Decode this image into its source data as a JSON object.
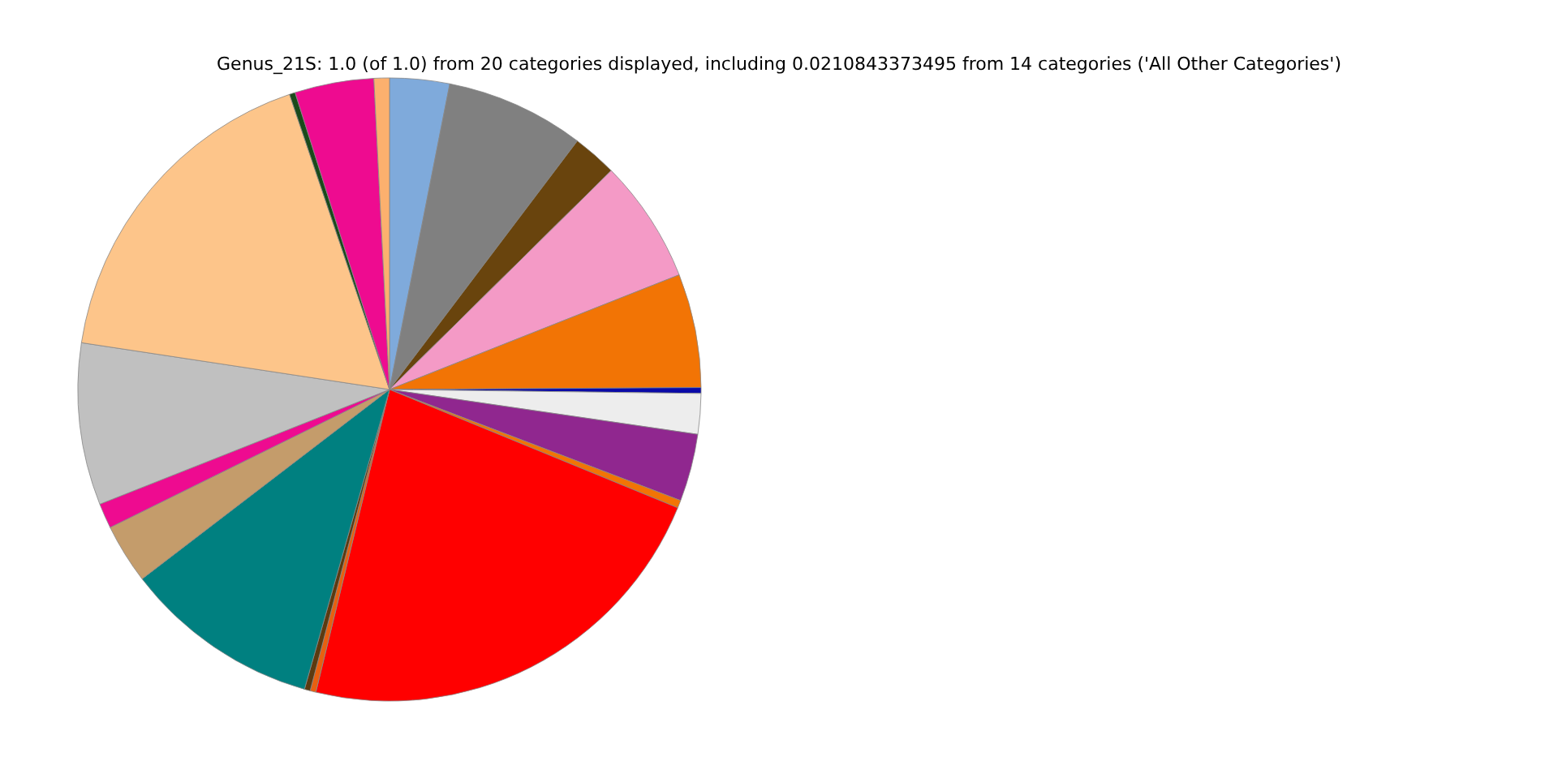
{
  "chart_data": {
    "type": "pie",
    "title": "Genus_21S: 1.0 (of 1.0) from 20 categories displayed, including 0.0210843373495 from 14 categories ('All Other Categories')",
    "categories": [
      null,
      null,
      null,
      null,
      null,
      null,
      null,
      null,
      null,
      null,
      null,
      null,
      null,
      null,
      null,
      null,
      null,
      null,
      null,
      null
    ],
    "values": [
      3.1,
      7.2,
      2.3,
      6.4,
      5.9,
      0.3,
      2.1,
      3.5,
      0.4,
      22.6,
      0.3,
      0.3,
      10.2,
      3.1,
      1.3,
      8.4,
      17.4,
      0.3,
      4.1,
      0.8
    ],
    "colors": [
      "#7faadb",
      "#808080",
      "#69440d",
      "#f49ac6",
      "#f27405",
      "#0a0aa8",
      "#ededed",
      "#90278f",
      "#f27405",
      "#ff0000",
      "#e86010",
      "#5c3a10",
      "#008080",
      "#c49c6b",
      "#ee0b90",
      "#c0c0c0",
      "#fdc58a",
      "#1a4a1a",
      "#ee0b90",
      "#fcb06e"
    ],
    "legend": false
  }
}
